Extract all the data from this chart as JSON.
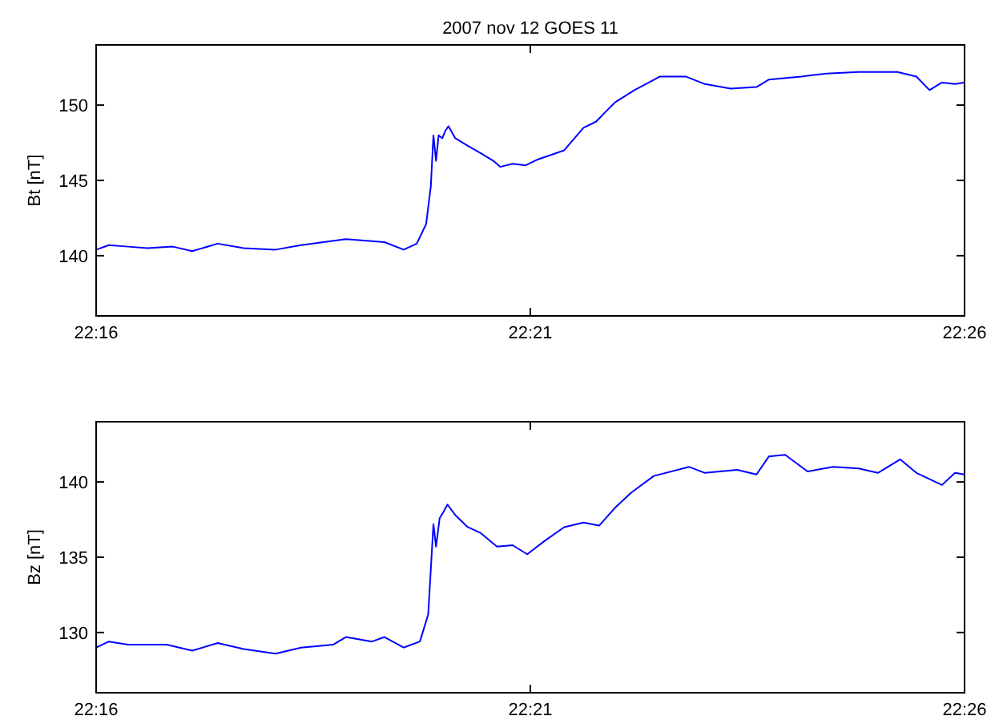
{
  "chart_data": [
    {
      "type": "line",
      "title": "2007 nov 12 GOES 11",
      "ylabel": "Bt [nT]",
      "xlim": [
        22.26667,
        22.43333
      ],
      "xticks": [
        {
          "value": 22.26667,
          "label": "22:16"
        },
        {
          "value": 22.35,
          "label": "22:21"
        },
        {
          "value": 22.43333,
          "label": "22:26"
        }
      ],
      "ylim": [
        136,
        154
      ],
      "yticks": [
        140,
        145,
        150
      ],
      "grid": false,
      "series": [
        {
          "color": "#0000ff",
          "x": [
            22.2667,
            22.2691,
            22.2728,
            22.2765,
            22.2814,
            22.2851,
            22.29,
            22.295,
            22.3011,
            22.306,
            22.3146,
            22.322,
            22.3257,
            22.3282,
            22.33,
            22.3309,
            22.3314,
            22.3319,
            22.3324,
            22.3331,
            22.3337,
            22.3343,
            22.3356,
            22.338,
            22.3405,
            22.3429,
            22.3442,
            22.3466,
            22.3491,
            22.3515,
            22.3565,
            22.3602,
            22.3626,
            22.3663,
            22.37,
            22.3749,
            22.3798,
            22.3835,
            22.3884,
            22.3934,
            22.3958,
            22.402,
            22.4069,
            22.413,
            22.4204,
            22.4241,
            22.4266,
            22.429,
            22.4315,
            22.4333
          ],
          "values": [
            140.4,
            140.7,
            140.6,
            140.5,
            140.6,
            140.3,
            140.8,
            140.5,
            140.4,
            140.7,
            141.1,
            140.9,
            140.4,
            140.8,
            142.1,
            144.6,
            148.0,
            146.3,
            148.0,
            147.8,
            148.3,
            148.6,
            147.8,
            147.3,
            146.8,
            146.3,
            145.9,
            146.1,
            146.0,
            146.4,
            147.0,
            148.5,
            148.9,
            150.2,
            151.0,
            151.9,
            151.9,
            151.4,
            151.1,
            151.2,
            151.7,
            151.9,
            152.1,
            152.2,
            152.2,
            151.9,
            151.0,
            151.5,
            151.4,
            151.5
          ]
        }
      ]
    },
    {
      "type": "line",
      "ylabel": "Bz [nT]",
      "xlim": [
        22.26667,
        22.43333
      ],
      "xticks": [
        {
          "value": 22.26667,
          "label": "22:16"
        },
        {
          "value": 22.35,
          "label": "22:21"
        },
        {
          "value": 22.43333,
          "label": "22:26"
        }
      ],
      "ylim": [
        126,
        144
      ],
      "yticks": [
        130,
        135,
        140
      ],
      "grid": false,
      "series": [
        {
          "color": "#0000ff",
          "x": [
            22.2667,
            22.2691,
            22.2728,
            22.2802,
            22.2851,
            22.29,
            22.295,
            22.3011,
            22.306,
            22.3122,
            22.3146,
            22.3196,
            22.322,
            22.3257,
            22.3288,
            22.3304,
            22.3314,
            22.3319,
            22.3326,
            22.3333,
            22.3341,
            22.3356,
            22.338,
            22.3405,
            22.3436,
            22.3466,
            22.3494,
            22.3528,
            22.3565,
            22.3602,
            22.3632,
            22.3663,
            22.3694,
            22.3737,
            22.3805,
            22.3835,
            22.3897,
            22.3934,
            22.3958,
            22.3989,
            22.4032,
            22.4081,
            22.413,
            22.4167,
            22.421,
            22.4241,
            22.429,
            22.4315,
            22.4333
          ],
          "values": [
            129.0,
            129.4,
            129.2,
            129.2,
            128.8,
            129.3,
            128.9,
            128.6,
            129.0,
            129.2,
            129.7,
            129.4,
            129.7,
            129.0,
            129.4,
            131.2,
            137.2,
            135.7,
            137.6,
            138.0,
            138.5,
            137.8,
            137.0,
            136.6,
            135.7,
            135.8,
            135.2,
            136.1,
            137.0,
            137.3,
            137.1,
            138.3,
            139.3,
            140.4,
            141.0,
            140.6,
            140.8,
            140.5,
            141.7,
            141.8,
            140.7,
            141.0,
            140.9,
            140.6,
            141.5,
            140.6,
            139.8,
            140.6,
            140.5
          ]
        }
      ]
    }
  ]
}
